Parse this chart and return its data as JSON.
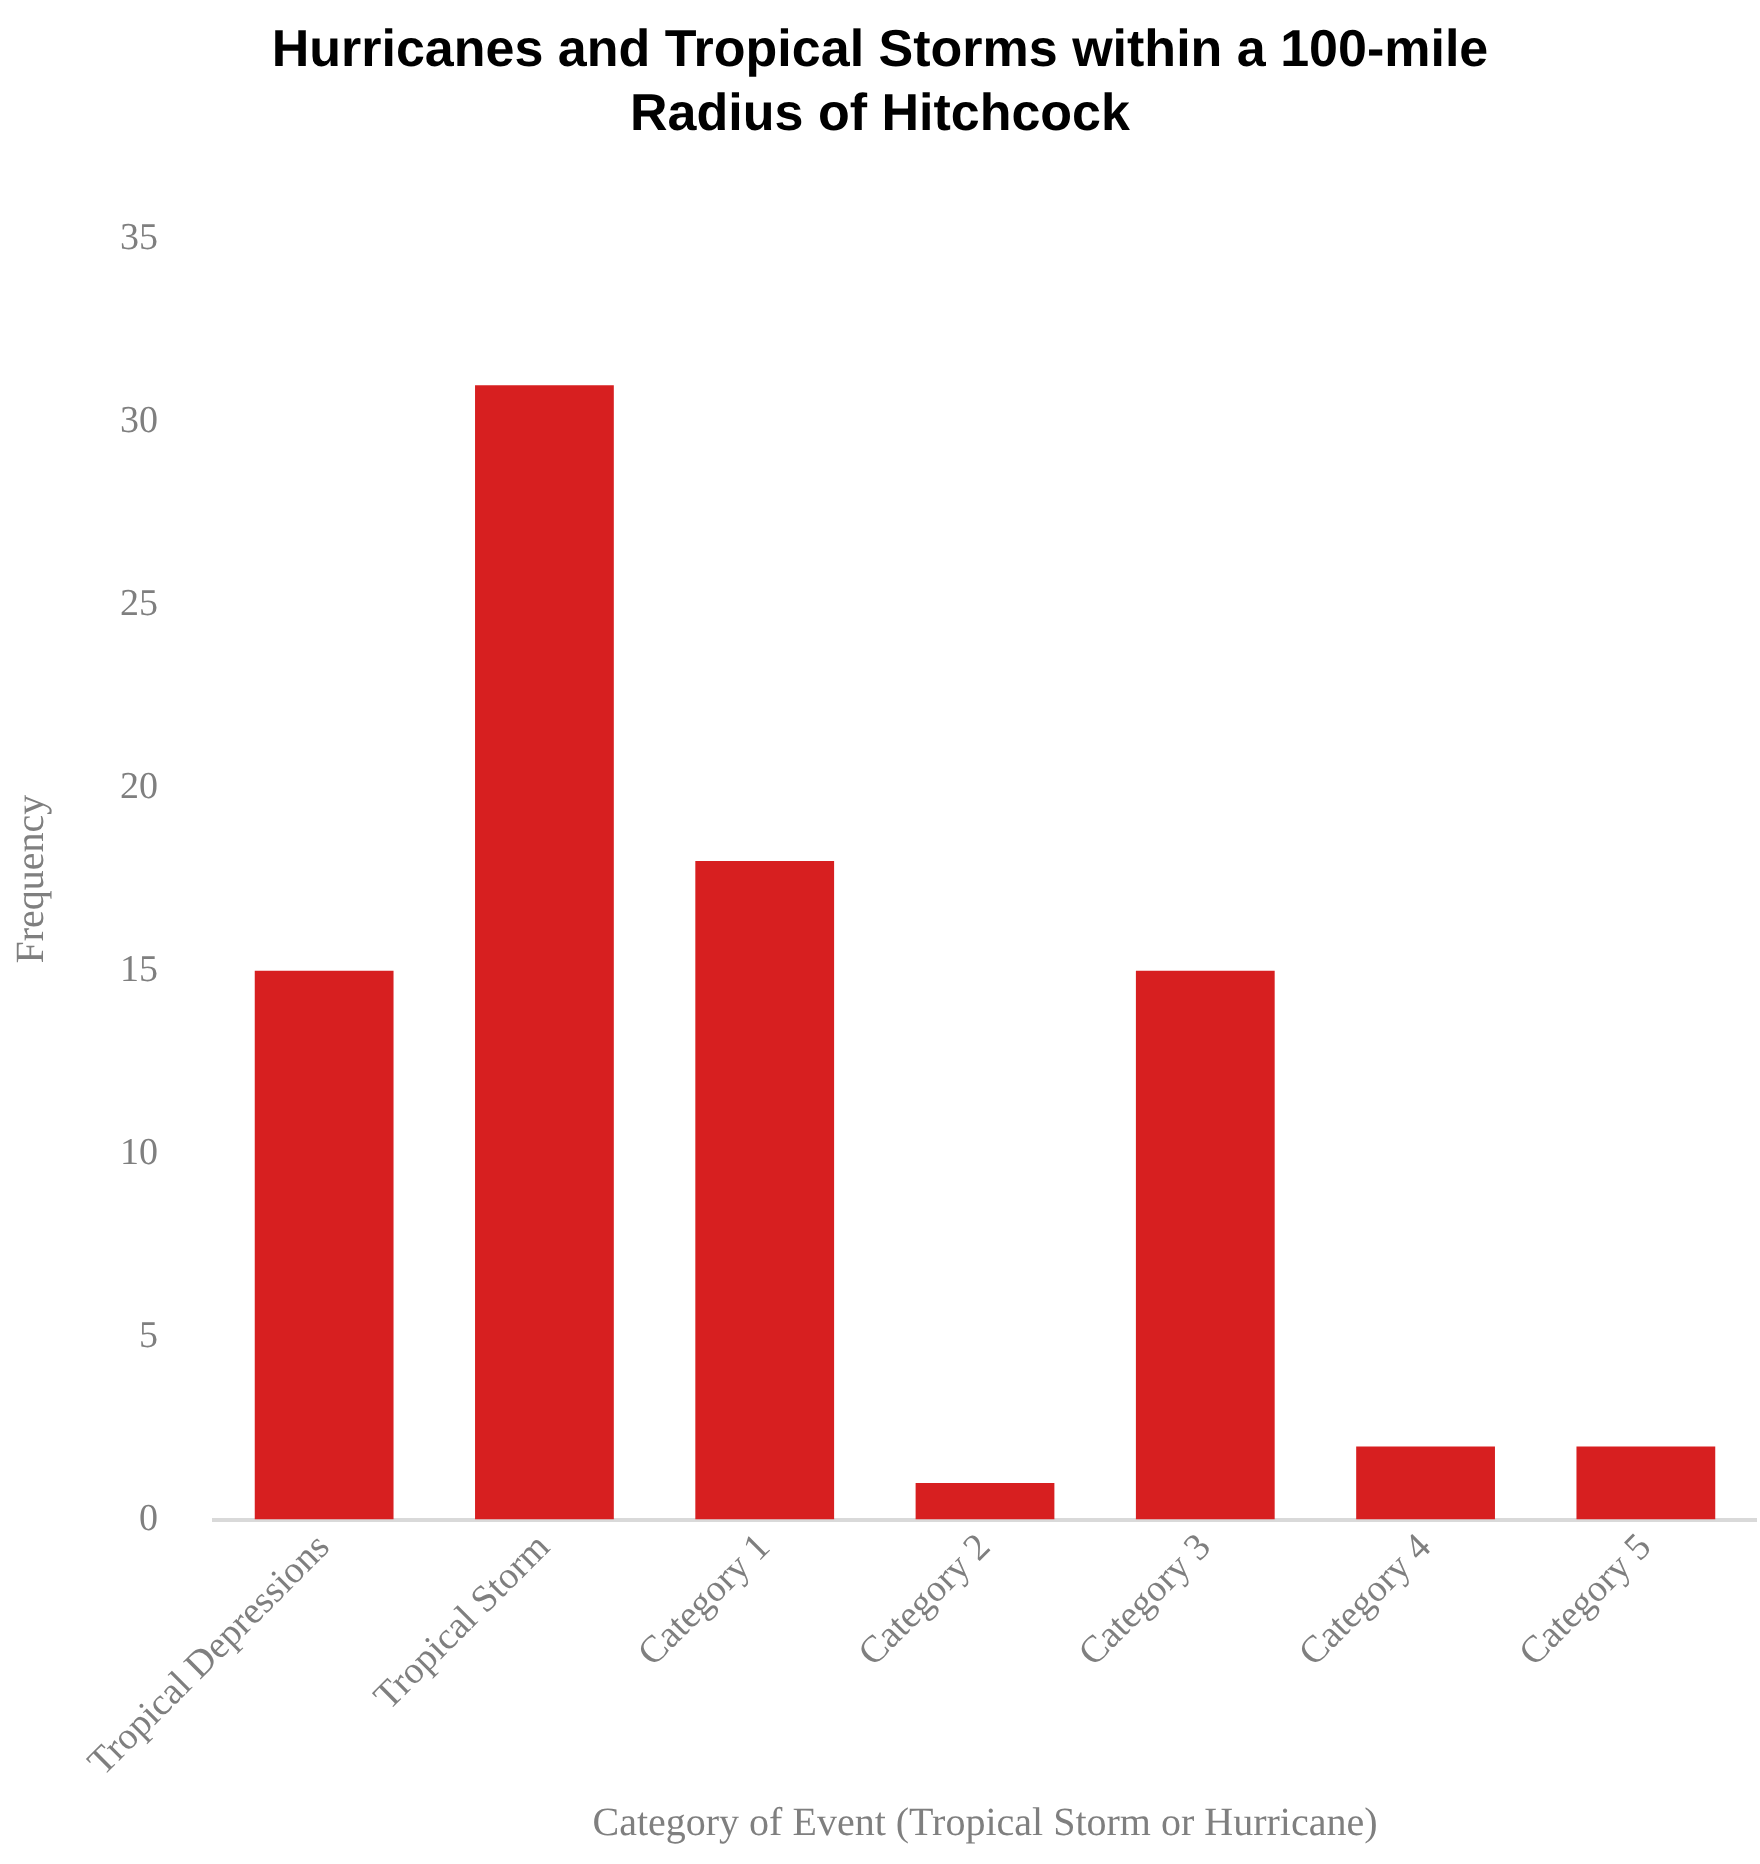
{
  "chart_data": {
    "type": "bar",
    "title": "Hurricanes and Tropical Storms within a 100-mile Radius of Hitchcock",
    "xlabel": "Category of Event (Tropical Storm or Hurricane)",
    "ylabel": "Frequency",
    "categories": [
      "Tropical Depressions",
      "Tropical Storm",
      "Category 1",
      "Category 2",
      "Category 3",
      "Category 4",
      "Category 5"
    ],
    "values": [
      15,
      31,
      18,
      1,
      15,
      2,
      2
    ],
    "color": "#d71f20",
    "ylim": [
      0,
      35
    ],
    "yticks": [
      0,
      5,
      10,
      15,
      20,
      25,
      30,
      35
    ],
    "grid": false,
    "legend": false
  }
}
